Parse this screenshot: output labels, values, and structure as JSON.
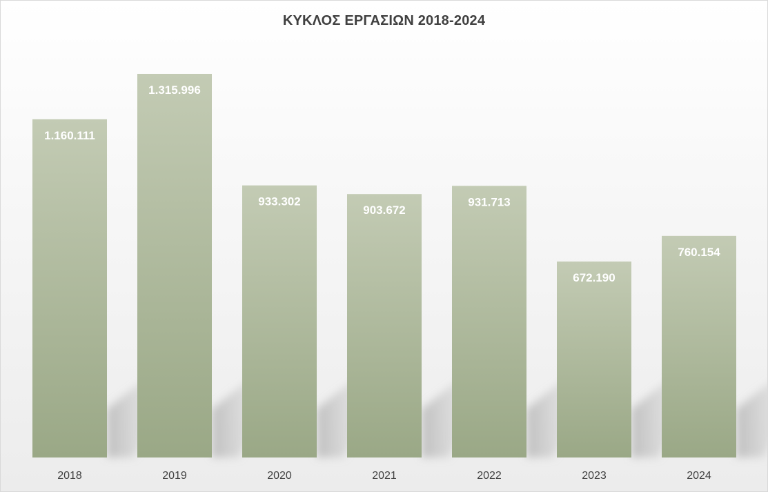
{
  "chart_data": {
    "type": "bar",
    "title": "ΚΥΚΛΟΣ ΕΡΓΑΣΙΩΝ 2018-2024",
    "categories": [
      "2018",
      "2019",
      "2020",
      "2021",
      "2022",
      "2023",
      "2024"
    ],
    "values": [
      1160111,
      1315996,
      933302,
      903672,
      931713,
      672190,
      760154
    ],
    "data_labels": [
      "1.160.111",
      "1.315.996",
      "933.302",
      "903.672",
      "931.713",
      "672.190",
      "760.154"
    ],
    "xlabel": "",
    "ylabel": "",
    "ylim": [
      0,
      1400000
    ],
    "grid": false,
    "legend": "none",
    "colors": {
      "bar_top": "#c3cbb4",
      "bar_bottom": "#9aa886",
      "data_label": "#ffffff",
      "axis_label": "#404040",
      "title": "#404040"
    }
  }
}
